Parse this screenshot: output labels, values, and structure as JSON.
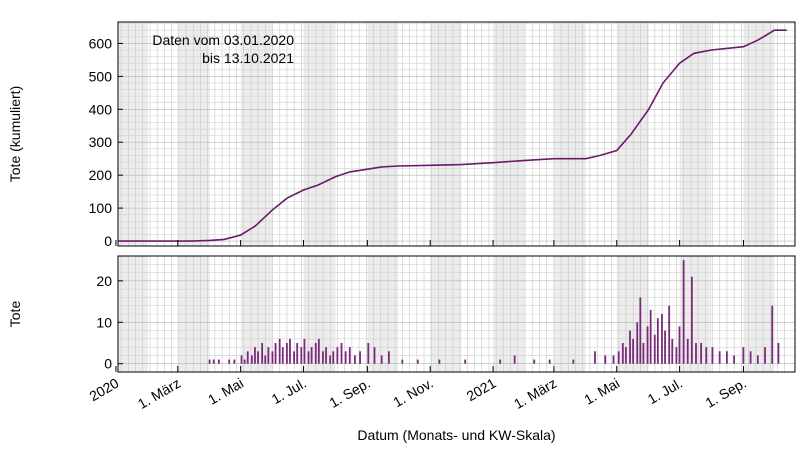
{
  "chart_data": [
    {
      "type": "line",
      "xlabel": "Datum (Monats- und KW-Skala)",
      "ylabel": "Tote (kumuliert)",
      "annotation": [
        "Daten vom 03.01.2020",
        "bis 13.10.2021"
      ],
      "x_range": [
        "2020-01-03",
        "2021-10-13"
      ],
      "ylim": [
        -15,
        665
      ],
      "yticks": [
        0,
        100,
        200,
        300,
        400,
        500,
        600
      ],
      "grid": true,
      "color": "#6a1a6a",
      "x": [
        "2020-01-03",
        "2020-02-15",
        "2020-03-15",
        "2020-04-01",
        "2020-04-15",
        "2020-05-01",
        "2020-05-15",
        "2020-06-01",
        "2020-06-15",
        "2020-07-01",
        "2020-07-15",
        "2020-08-01",
        "2020-08-15",
        "2020-09-01",
        "2020-09-15",
        "2020-10-01",
        "2020-11-01",
        "2020-12-01",
        "2021-01-01",
        "2021-02-01",
        "2021-03-01",
        "2021-04-01",
        "2021-04-15",
        "2021-05-01",
        "2021-05-15",
        "2021-06-01",
        "2021-06-15",
        "2021-07-01",
        "2021-07-15",
        "2021-08-01",
        "2021-09-01",
        "2021-09-15",
        "2021-10-01",
        "2021-10-13"
      ],
      "y": [
        0,
        0,
        0,
        2,
        5,
        18,
        45,
        95,
        130,
        155,
        170,
        195,
        210,
        218,
        225,
        228,
        230,
        232,
        238,
        245,
        250,
        250,
        260,
        275,
        325,
        400,
        480,
        540,
        570,
        580,
        590,
        610,
        640,
        640
      ]
    },
    {
      "type": "bar",
      "xlabel": "Datum (Monats- und KW-Skala)",
      "ylabel": "Tote",
      "ylim": [
        -2,
        26
      ],
      "yticks": [
        0,
        10,
        20
      ],
      "grid": true,
      "color": "#7a2a7a",
      "x": [
        "2020-04-01",
        "2020-04-05",
        "2020-04-10",
        "2020-04-20",
        "2020-04-25",
        "2020-05-02",
        "2020-05-05",
        "2020-05-08",
        "2020-05-12",
        "2020-05-15",
        "2020-05-18",
        "2020-05-22",
        "2020-05-25",
        "2020-05-28",
        "2020-06-01",
        "2020-06-04",
        "2020-06-08",
        "2020-06-11",
        "2020-06-15",
        "2020-06-18",
        "2020-06-22",
        "2020-06-25",
        "2020-06-29",
        "2020-07-02",
        "2020-07-06",
        "2020-07-09",
        "2020-07-13",
        "2020-07-16",
        "2020-07-20",
        "2020-07-23",
        "2020-07-27",
        "2020-07-30",
        "2020-08-03",
        "2020-08-07",
        "2020-08-11",
        "2020-08-15",
        "2020-08-20",
        "2020-08-25",
        "2020-09-02",
        "2020-09-08",
        "2020-09-15",
        "2020-09-22",
        "2020-10-05",
        "2020-10-20",
        "2020-11-10",
        "2020-12-05",
        "2021-01-08",
        "2021-01-22",
        "2021-02-10",
        "2021-02-25",
        "2021-03-20",
        "2021-04-10",
        "2021-04-20",
        "2021-04-28",
        "2021-05-03",
        "2021-05-07",
        "2021-05-10",
        "2021-05-14",
        "2021-05-17",
        "2021-05-21",
        "2021-05-24",
        "2021-05-27",
        "2021-05-31",
        "2021-06-03",
        "2021-06-07",
        "2021-06-10",
        "2021-06-14",
        "2021-06-17",
        "2021-06-21",
        "2021-06-24",
        "2021-06-28",
        "2021-07-01",
        "2021-07-05",
        "2021-07-09",
        "2021-07-13",
        "2021-07-17",
        "2021-07-22",
        "2021-07-27",
        "2021-08-02",
        "2021-08-09",
        "2021-08-16",
        "2021-08-23",
        "2021-09-01",
        "2021-09-08",
        "2021-09-15",
        "2021-09-22",
        "2021-09-29",
        "2021-10-05"
      ],
      "y": [
        1,
        1,
        1,
        1,
        1,
        2,
        1,
        3,
        2,
        4,
        3,
        5,
        2,
        4,
        3,
        5,
        6,
        4,
        5,
        6,
        3,
        5,
        4,
        6,
        3,
        4,
        5,
        6,
        3,
        4,
        2,
        3,
        4,
        5,
        3,
        4,
        2,
        3,
        5,
        4,
        2,
        3,
        1,
        1,
        1,
        1,
        1,
        2,
        1,
        1,
        1,
        3,
        2,
        2,
        3,
        5,
        4,
        8,
        6,
        10,
        16,
        5,
        9,
        13,
        7,
        11,
        12,
        8,
        14,
        6,
        4,
        9,
        25,
        6,
        21,
        5,
        5,
        4,
        4,
        3,
        3,
        2,
        4,
        3,
        2,
        4,
        14,
        5
      ]
    }
  ],
  "x_axis": {
    "tick_labels": [
      "2020",
      "1. März",
      "1. Mai",
      "1. Jul.",
      "1. Sep.",
      "1. Nov.",
      "2021",
      "1. März",
      "1. Mai",
      "1. Jul.",
      "1. Sep."
    ],
    "tick_dates": [
      "2020-01-01",
      "2020-03-01",
      "2020-05-01",
      "2020-07-01",
      "2020-09-01",
      "2020-11-01",
      "2021-01-01",
      "2021-03-01",
      "2021-05-01",
      "2021-07-01",
      "2021-09-01"
    ],
    "shaded_months": [
      "2020-01",
      "2020-03",
      "2020-05",
      "2020-07",
      "2020-09",
      "2020-11",
      "2021-01",
      "2021-03",
      "2021-05",
      "2021-07",
      "2021-09"
    ]
  }
}
